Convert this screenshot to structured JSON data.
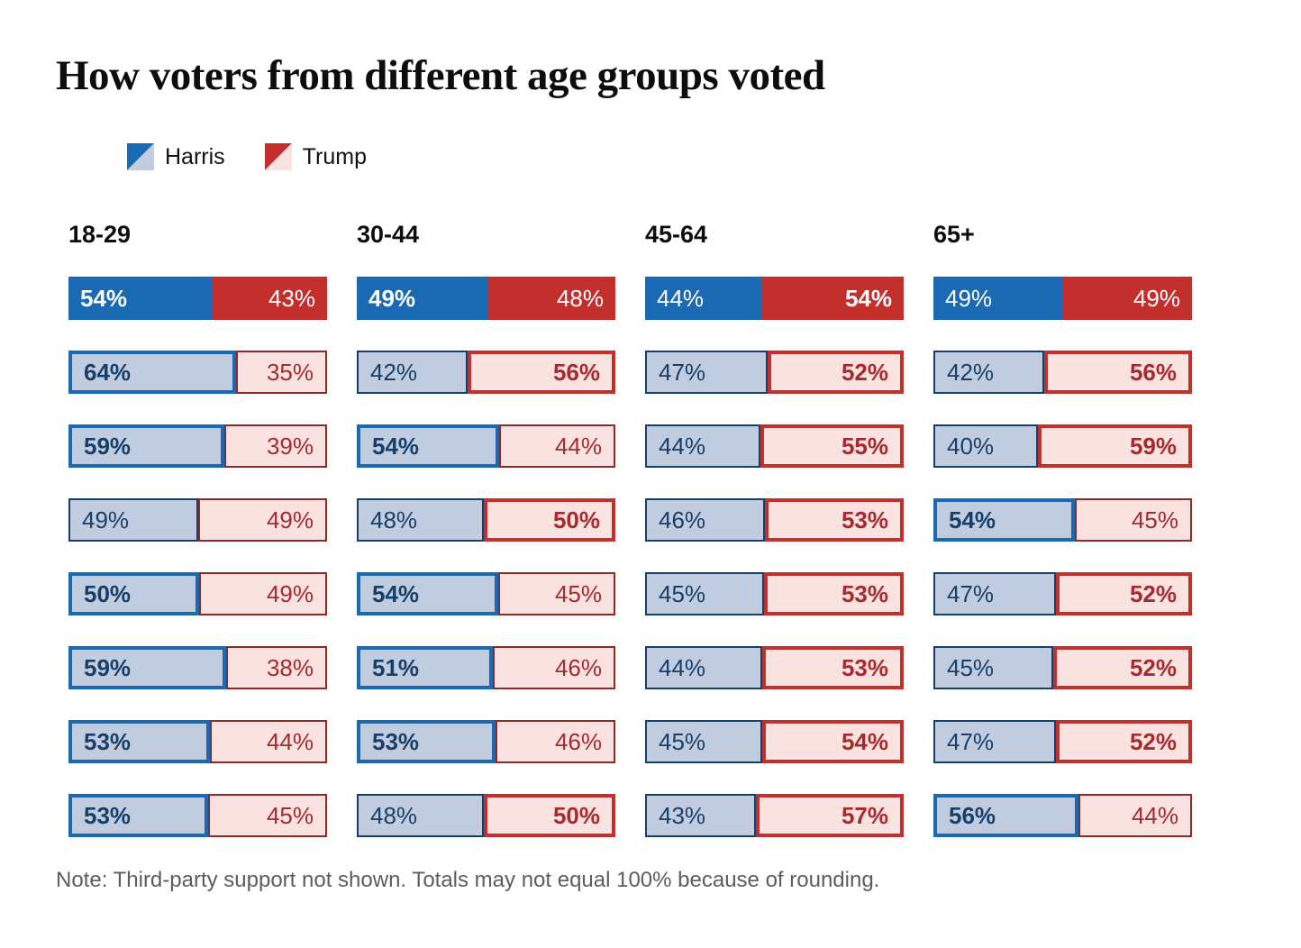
{
  "title": "How voters from different age groups voted",
  "legend": {
    "harris": "Harris",
    "trump": "Trump"
  },
  "note": "Note: Third-party support not shown. Totals may not equal 100% because of rounding.",
  "colors": {
    "harris_solid": "#1a69b3",
    "harris_light": "#c1cdde",
    "harris_dark": "#14406e",
    "harris_text": "#173f6b",
    "trump_solid": "#c22f2c",
    "trump_light": "#f9e2e0",
    "trump_dark": "#8e2a25",
    "trump_text": "#a52b2e"
  },
  "chart_data": {
    "type": "bar",
    "subtype": "horizontal-stacked-pairs",
    "title": "How voters from different age groups voted",
    "legend": [
      "Harris",
      "Trump"
    ],
    "legend_position": "top-left",
    "unit": "%",
    "first_row_style": "solid",
    "other_rows_style": "light-outlined",
    "groups": [
      {
        "label": "18-29",
        "rows": [
          {
            "harris": 54,
            "trump": 43
          },
          {
            "harris": 64,
            "trump": 35
          },
          {
            "harris": 59,
            "trump": 39
          },
          {
            "harris": 49,
            "trump": 49
          },
          {
            "harris": 50,
            "trump": 49
          },
          {
            "harris": 59,
            "trump": 38
          },
          {
            "harris": 53,
            "trump": 44
          },
          {
            "harris": 53,
            "trump": 45
          }
        ]
      },
      {
        "label": "30-44",
        "rows": [
          {
            "harris": 49,
            "trump": 48
          },
          {
            "harris": 42,
            "trump": 56
          },
          {
            "harris": 54,
            "trump": 44
          },
          {
            "harris": 48,
            "trump": 50
          },
          {
            "harris": 54,
            "trump": 45
          },
          {
            "harris": 51,
            "trump": 46
          },
          {
            "harris": 53,
            "trump": 46
          },
          {
            "harris": 48,
            "trump": 50
          }
        ]
      },
      {
        "label": "45-64",
        "rows": [
          {
            "harris": 44,
            "trump": 54
          },
          {
            "harris": 47,
            "trump": 52
          },
          {
            "harris": 44,
            "trump": 55
          },
          {
            "harris": 46,
            "trump": 53
          },
          {
            "harris": 45,
            "trump": 53
          },
          {
            "harris": 44,
            "trump": 53
          },
          {
            "harris": 45,
            "trump": 54
          },
          {
            "harris": 43,
            "trump": 57
          }
        ]
      },
      {
        "label": "65+",
        "rows": [
          {
            "harris": 49,
            "trump": 49
          },
          {
            "harris": 42,
            "trump": 56
          },
          {
            "harris": 40,
            "trump": 59
          },
          {
            "harris": 54,
            "trump": 45
          },
          {
            "harris": 47,
            "trump": 52
          },
          {
            "harris": 45,
            "trump": 52
          },
          {
            "harris": 47,
            "trump": 52
          },
          {
            "harris": 56,
            "trump": 44
          }
        ]
      }
    ],
    "note": "Note: Third-party support not shown. Totals may not equal 100% because of rounding."
  }
}
